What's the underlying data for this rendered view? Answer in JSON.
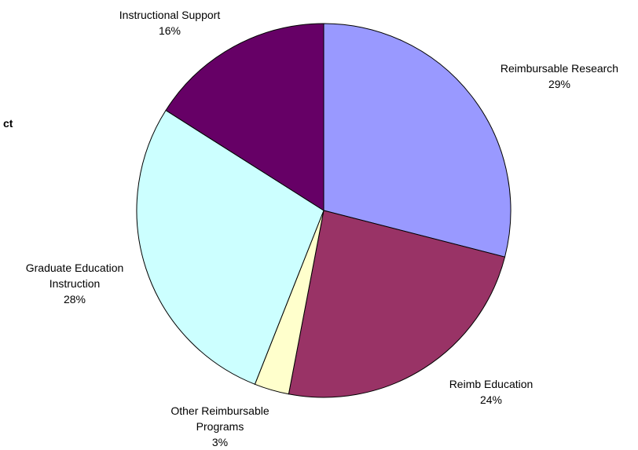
{
  "chart_data": {
    "type": "pie",
    "title": "",
    "start_angle_deg": 0,
    "direction": "clockwise",
    "slices": [
      {
        "label_lines": [
          "Reimbursable Research"
        ],
        "percent_label": "29%",
        "value": 29,
        "color": "#9999ff"
      },
      {
        "label_lines": [
          "Reimb Education"
        ],
        "percent_label": "24%",
        "value": 24,
        "color": "#993366"
      },
      {
        "label_lines": [
          "Other Reimbursable",
          "Programs"
        ],
        "percent_label": "3%",
        "value": 3,
        "color": "#ffffcc"
      },
      {
        "label_lines": [
          "Graduate Education",
          "Instruction"
        ],
        "percent_label": "28%",
        "value": 28,
        "color": "#ccffff"
      },
      {
        "label_lines": [
          "Instructional Support"
        ],
        "percent_label": "16%",
        "value": 16,
        "color": "#660066"
      }
    ],
    "side_text": "ct"
  }
}
